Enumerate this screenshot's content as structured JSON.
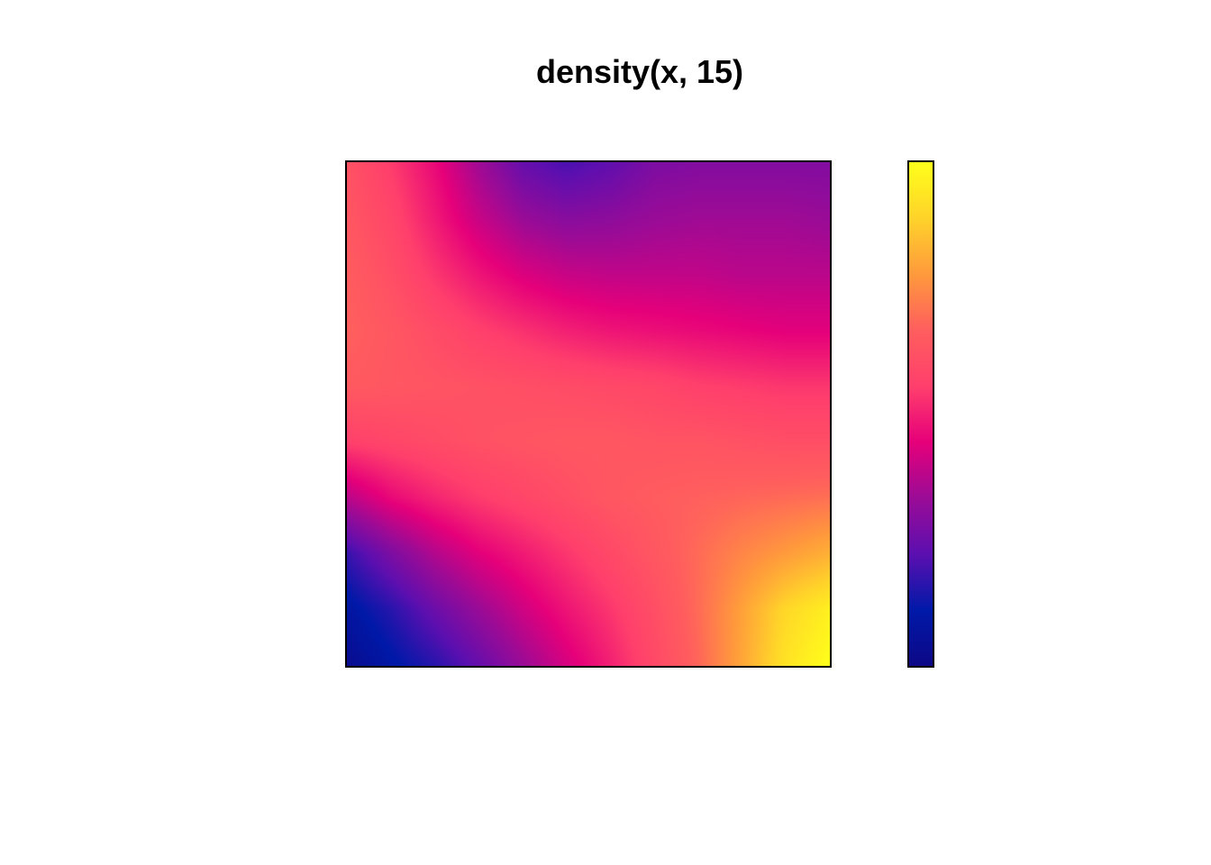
{
  "chart_data": {
    "type": "heatmap",
    "title": "density(x, 15)",
    "xlabel": "",
    "ylabel": "",
    "axes_shown": false,
    "colormap": "plasma",
    "colorbar": {
      "position": "right",
      "tick_labels_shown": false,
      "colors": [
        "#0D0887",
        "#0019A8",
        "#5C0FB0",
        "#9B0B96",
        "#E6007A",
        "#FF3F6C",
        "#FF5E5E",
        "#FF9A3C",
        "#FFD32A",
        "#FFFF1A"
      ]
    },
    "grid_rows_top_to_bottom": [
      [
        0.62,
        0.55,
        0.46,
        0.34,
        0.24,
        0.2,
        0.23,
        0.28,
        0.29,
        0.29,
        0.29,
        0.29
      ],
      [
        0.64,
        0.58,
        0.49,
        0.4,
        0.33,
        0.3,
        0.31,
        0.33,
        0.34,
        0.34,
        0.34,
        0.33
      ],
      [
        0.66,
        0.61,
        0.54,
        0.48,
        0.43,
        0.4,
        0.39,
        0.39,
        0.39,
        0.38,
        0.38,
        0.38
      ],
      [
        0.67,
        0.64,
        0.6,
        0.56,
        0.53,
        0.5,
        0.48,
        0.47,
        0.46,
        0.45,
        0.44,
        0.44
      ],
      [
        0.65,
        0.64,
        0.63,
        0.62,
        0.61,
        0.6,
        0.59,
        0.58,
        0.56,
        0.55,
        0.54,
        0.54
      ],
      [
        0.56,
        0.58,
        0.6,
        0.62,
        0.63,
        0.64,
        0.64,
        0.63,
        0.63,
        0.62,
        0.61,
        0.61
      ],
      [
        0.38,
        0.46,
        0.51,
        0.55,
        0.58,
        0.61,
        0.64,
        0.66,
        0.67,
        0.68,
        0.69,
        0.7
      ],
      [
        0.18,
        0.28,
        0.37,
        0.44,
        0.49,
        0.54,
        0.59,
        0.64,
        0.69,
        0.74,
        0.78,
        0.82
      ],
      [
        0.09,
        0.16,
        0.25,
        0.33,
        0.41,
        0.48,
        0.54,
        0.61,
        0.69,
        0.79,
        0.9,
        0.96
      ],
      [
        0.03,
        0.1,
        0.16,
        0.24,
        0.33,
        0.42,
        0.5,
        0.59,
        0.68,
        0.8,
        0.93,
        1.0
      ]
    ],
    "value_range": [
      0,
      1
    ]
  }
}
